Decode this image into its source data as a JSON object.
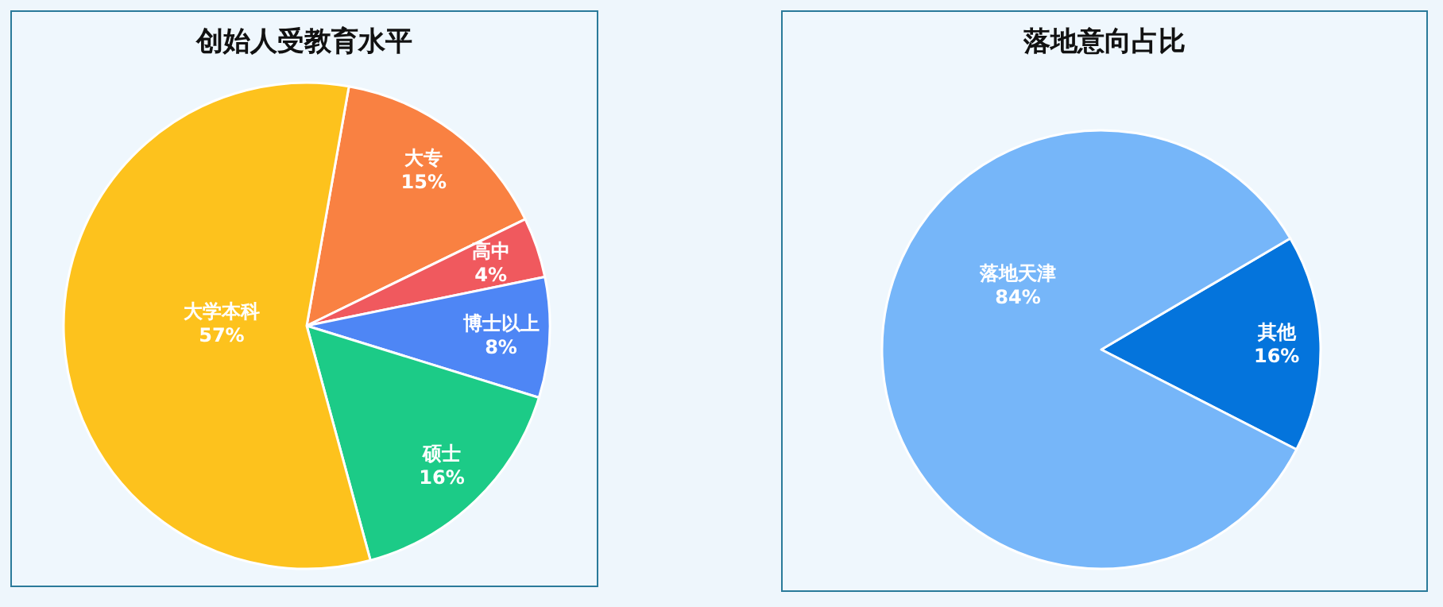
{
  "chart_data": [
    {
      "type": "pie",
      "title": "创始人受教育水平",
      "categories": [
        "大专",
        "高中",
        "博士以上",
        "硕士",
        "大学本科"
      ],
      "values": [
        15,
        4,
        8,
        16,
        57
      ],
      "colors": [
        "#f98142",
        "#f0595e",
        "#4e86f5",
        "#1ccb87",
        "#fdc21d"
      ],
      "value_labels": [
        "15%",
        "4%",
        "8%",
        "16%",
        "57%"
      ]
    },
    {
      "type": "pie",
      "title": "落地意向占比",
      "categories": [
        "其他",
        "落地天津"
      ],
      "values": [
        16,
        84
      ],
      "colors": [
        "#0474dc",
        "#76b6f9"
      ],
      "value_labels": [
        "16%",
        "84%"
      ]
    }
  ]
}
